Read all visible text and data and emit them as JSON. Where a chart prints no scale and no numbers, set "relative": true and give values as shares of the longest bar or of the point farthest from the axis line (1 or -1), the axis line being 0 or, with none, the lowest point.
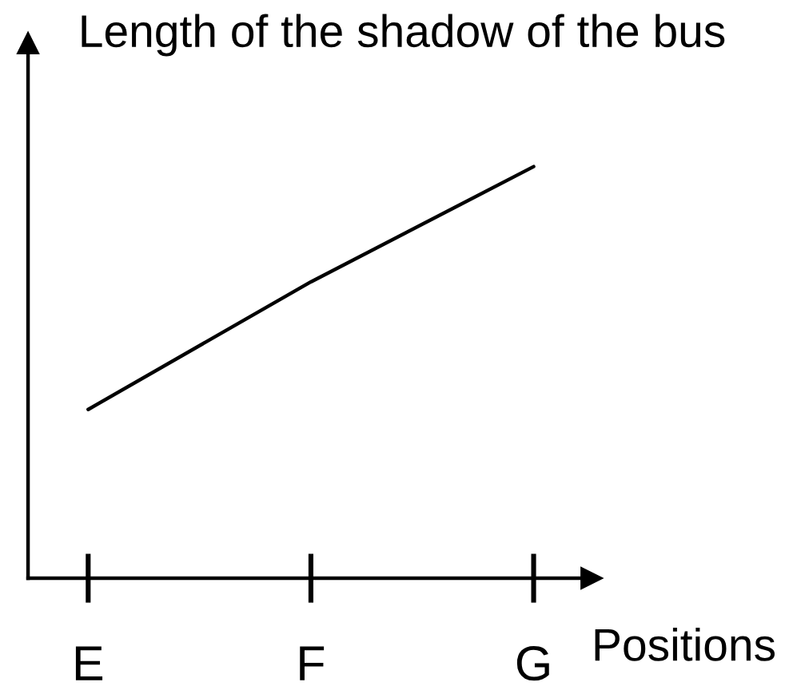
{
  "chart_data": {
    "type": "line",
    "relative": true,
    "categories": [
      "E",
      "F",
      "G"
    ],
    "values": [
      0.41,
      0.72,
      1.0
    ],
    "color": "#000000",
    "line_style": "solid",
    "xlabel": "Positions",
    "ylabel": "Length of the shadow of the bus"
  }
}
